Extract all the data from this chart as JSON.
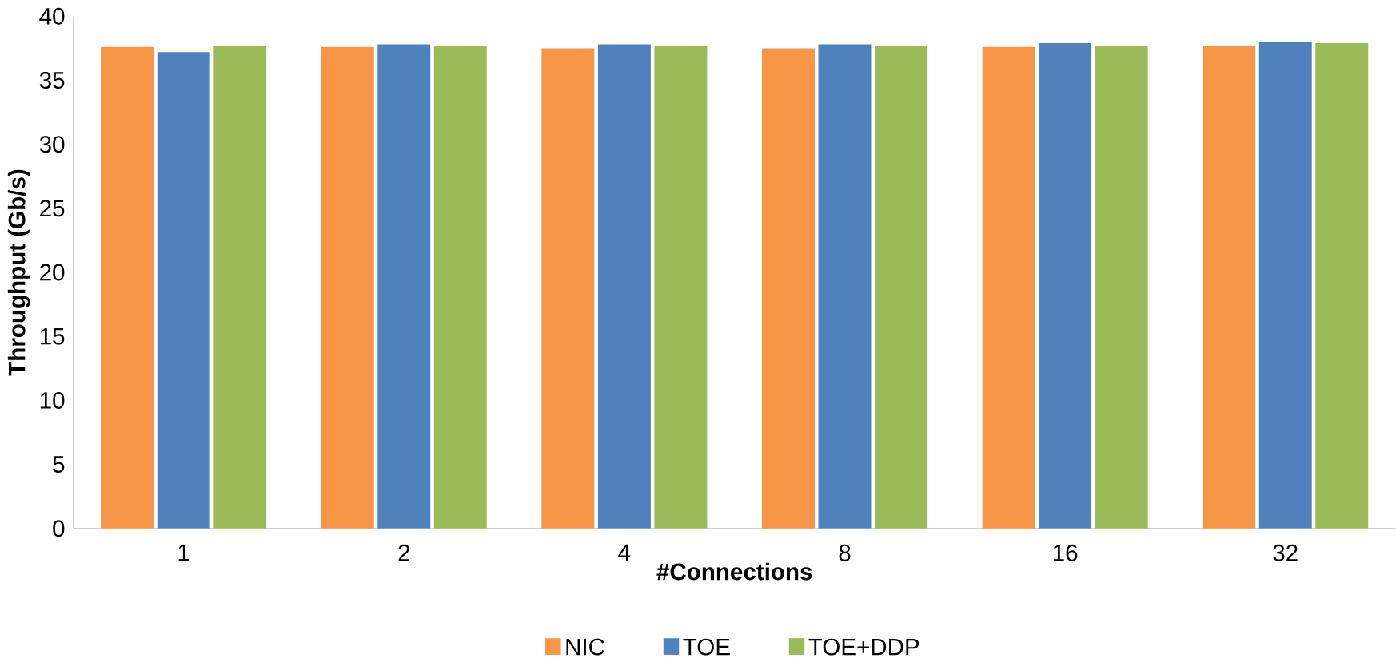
{
  "chart_data": {
    "type": "bar",
    "xlabel": "#Connections",
    "ylabel": "Throughput (Gb/s)",
    "categories": [
      "1",
      "2",
      "4",
      "8",
      "16",
      "32"
    ],
    "series": [
      {
        "name": "NIC",
        "color": "#f79646",
        "values": [
          37.6,
          37.6,
          37.5,
          37.5,
          37.6,
          37.7
        ]
      },
      {
        "name": "TOE",
        "color": "#4f81bd",
        "values": [
          37.2,
          37.8,
          37.8,
          37.8,
          37.9,
          38.0
        ]
      },
      {
        "name": "TOE+DDP",
        "color": "#9bbb59",
        "values": [
          37.7,
          37.7,
          37.7,
          37.7,
          37.7,
          37.9
        ]
      }
    ],
    "ylim": [
      0,
      40
    ],
    "yticks": [
      0,
      5,
      10,
      15,
      20,
      25,
      30,
      35,
      40
    ],
    "grid": false,
    "legend": "bottom"
  }
}
